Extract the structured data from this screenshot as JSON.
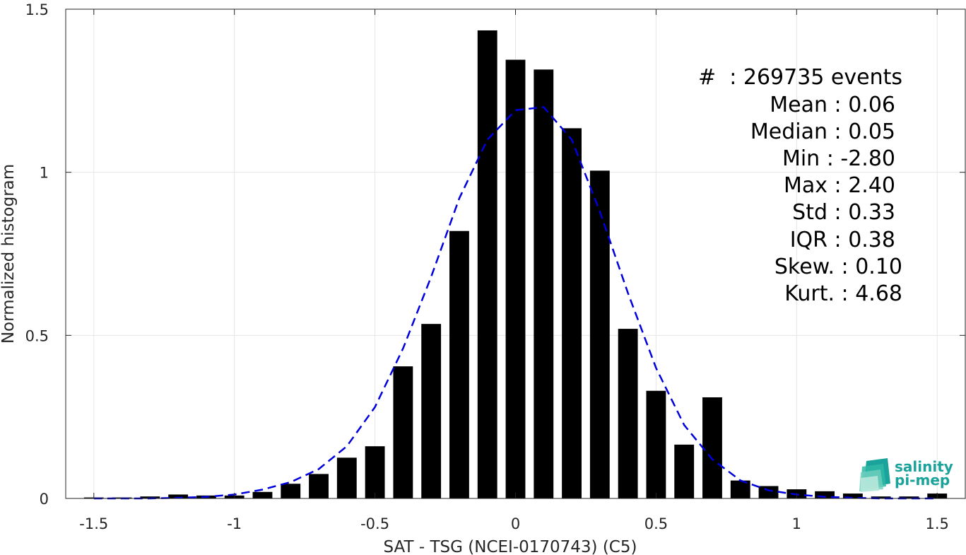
{
  "chart_data": {
    "type": "bar",
    "xlabel": "SAT - TSG (NCEI-0170743) (C5)",
    "ylabel": "Normalized histogram",
    "xlim": [
      -1.6,
      1.6
    ],
    "ylim": [
      0,
      1.5
    ],
    "x_ticks": [
      -1.5,
      -1,
      -0.5,
      0,
      0.5,
      1,
      1.5
    ],
    "x_tick_labels": [
      "-1.5",
      "-1",
      "-0.5",
      "0",
      "0.5",
      "1",
      "1.5"
    ],
    "y_ticks": [
      0,
      0.5,
      1,
      1.5
    ],
    "y_tick_labels": [
      "0",
      "0.5",
      "1",
      "1.5"
    ],
    "grid": true,
    "bar_color": "#000000",
    "bar_width": 0.07,
    "bins": [
      -1.5,
      -1.4,
      -1.3,
      -1.2,
      -1.1,
      -1.0,
      -0.9,
      -0.8,
      -0.7,
      -0.6,
      -0.5,
      -0.4,
      -0.3,
      -0.2,
      -0.1,
      0.0,
      0.1,
      0.2,
      0.3,
      0.4,
      0.5,
      0.6,
      0.7,
      0.8,
      0.9,
      1.0,
      1.1,
      1.2,
      1.3,
      1.4,
      1.5
    ],
    "values": [
      0.003,
      0.003,
      0.006,
      0.012,
      0.009,
      0.009,
      0.02,
      0.045,
      0.075,
      0.125,
      0.16,
      0.405,
      0.535,
      0.82,
      1.435,
      1.345,
      1.315,
      1.135,
      1.005,
      0.52,
      0.33,
      0.165,
      0.31,
      0.055,
      0.038,
      0.028,
      0.022,
      0.015,
      0.006,
      0.006,
      0.015
    ],
    "fit": {
      "name": "Gaussian fit",
      "color": "#0000dd",
      "style": "dashed",
      "x": [
        -1.5,
        -1.4,
        -1.3,
        -1.2,
        -1.1,
        -1.0,
        -0.9,
        -0.8,
        -0.7,
        -0.6,
        -0.5,
        -0.4,
        -0.3,
        -0.2,
        -0.1,
        0.0,
        0.1,
        0.2,
        0.3,
        0.4,
        0.5,
        0.6,
        0.7,
        0.8,
        0.9,
        1.0,
        1.1,
        1.2,
        1.3,
        1.4,
        1.5
      ],
      "y": [
        0.0,
        0.0,
        0.0,
        0.002,
        0.005,
        0.012,
        0.027,
        0.05,
        0.09,
        0.16,
        0.28,
        0.46,
        0.68,
        0.92,
        1.1,
        1.19,
        1.2,
        1.1,
        0.88,
        0.63,
        0.4,
        0.225,
        0.12,
        0.055,
        0.025,
        0.012,
        0.005,
        0.002,
        0.0,
        0.0,
        0.0
      ]
    },
    "annotations": [
      "#  : 269735 events",
      "Mean : 0.06",
      "Median : 0.05",
      "Min : -2.80",
      "Max : 2.40",
      "Std : 0.33",
      "IQR : 0.38",
      "Skew. : 0.10",
      "Kurt. : 4.68"
    ]
  },
  "logo": {
    "line1": "salinity",
    "line2": "pi-mep",
    "color": "#1aa39a"
  }
}
